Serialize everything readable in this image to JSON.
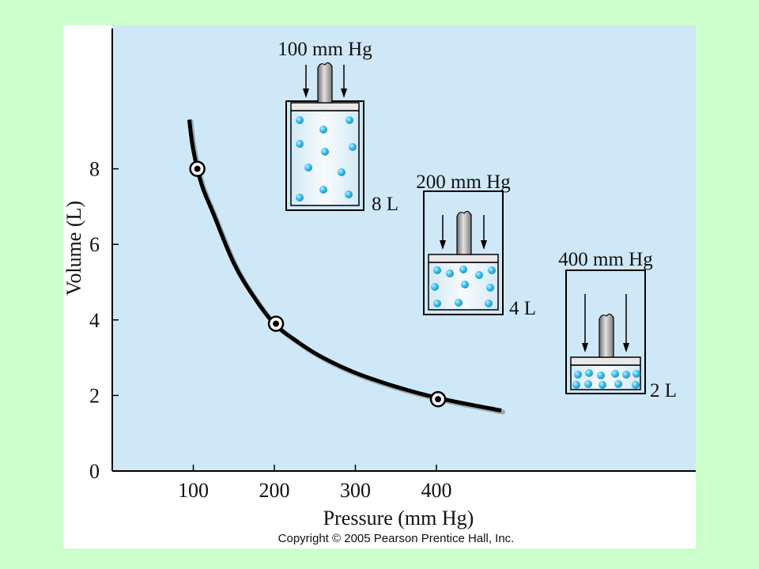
{
  "chart_data": {
    "type": "line",
    "xlabel": "Pressure (mm Hg)",
    "ylabel": "Volume (L)",
    "x_ticks": [
      100,
      200,
      300,
      400
    ],
    "y_ticks": [
      0,
      2,
      4,
      6,
      8
    ],
    "xlim": [
      0,
      720
    ],
    "ylim": [
      0,
      11.8
    ],
    "curve": {
      "x": [
        95,
        100,
        110,
        125,
        150,
        175,
        200,
        230,
        260,
        300,
        340,
        380,
        420,
        480
      ],
      "y": [
        9.3,
        8.5,
        7.6,
        6.8,
        5.5,
        4.6,
        3.9,
        3.4,
        3.0,
        2.6,
        2.3,
        2.05,
        1.85,
        1.6
      ]
    },
    "points": [
      {
        "x": 105,
        "y": 8.0
      },
      {
        "x": 202,
        "y": 3.9
      },
      {
        "x": 402,
        "y": 1.9
      }
    ]
  },
  "cylinders": [
    {
      "pressure_label": "100 mm Hg",
      "volume_label": "8 L"
    },
    {
      "pressure_label": "200 mm Hg",
      "volume_label": "4 L"
    },
    {
      "pressure_label": "400 mm Hg",
      "volume_label": "2 L"
    }
  ],
  "copyright": "Copyright © 2005 Pearson Prentice Hall, Inc.",
  "colors": {
    "page_bg": "#ccffcc",
    "plot_bg": "#cfe8f7",
    "curve": "#000000",
    "particle": "#3fc0ee",
    "piston": "#9a9a9a"
  }
}
